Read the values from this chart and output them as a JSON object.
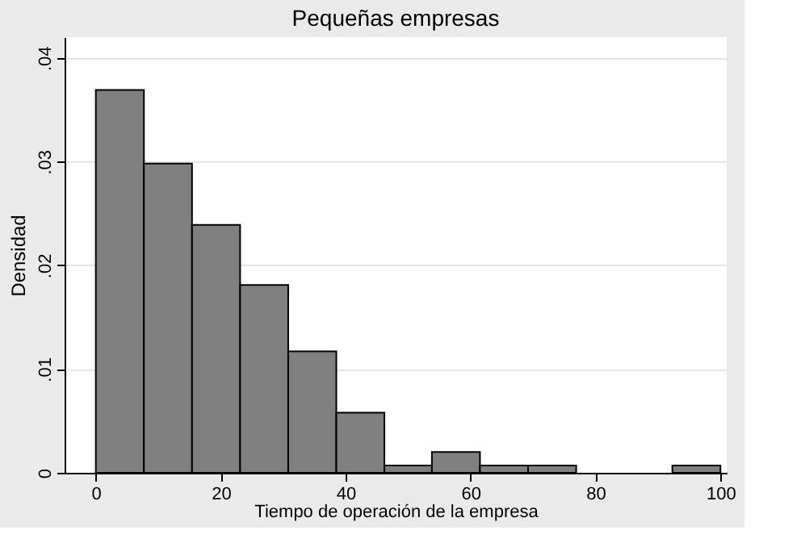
{
  "chart_data": {
    "type": "histogram",
    "title": "Pequeñas empresas",
    "xlabel": "Tiempo de operación de la empresa",
    "ylabel": "Densidad",
    "bins": [
      0,
      7.7,
      15.4,
      23.1,
      30.8,
      38.5,
      46.2,
      53.8,
      61.5,
      69.2,
      76.9,
      92.3,
      100
    ],
    "values": [
      0.0369,
      0.0298,
      0.0239,
      0.0181,
      0.0117,
      0.0058,
      0.0007,
      0.002,
      0.0007,
      0.0007,
      0,
      0.0007
    ],
    "color": "#808080",
    "xlim": [
      -5,
      101
    ],
    "xticks": [
      0,
      20,
      40,
      60,
      80,
      100
    ],
    "ylim": [
      0,
      0.042
    ],
    "yticks": [
      0,
      {
        "value": 0.01,
        "label": ".01"
      },
      {
        "value": 0.02,
        "label": ".02"
      },
      {
        "value": 0.03,
        "label": ".03"
      },
      {
        "value": 0.04,
        "label": ".04"
      }
    ],
    "grid": "y"
  }
}
